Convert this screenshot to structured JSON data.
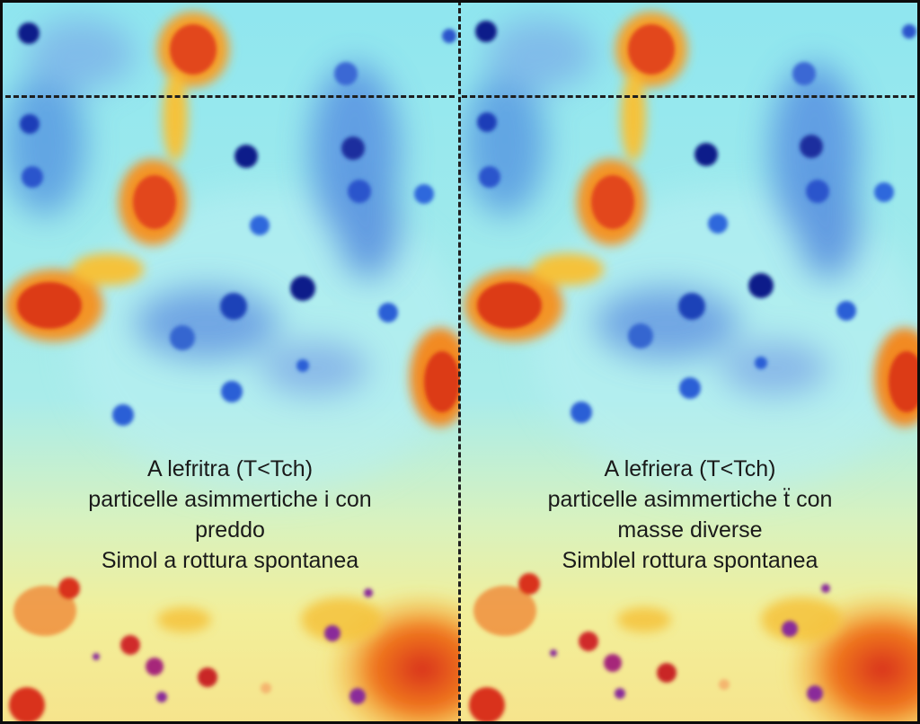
{
  "panels": [
    {
      "lines": [
        "A lefritra (T<Tch)",
        "particelle asimmertiche i con",
        "preddo",
        "Simol a rottura spontanea"
      ]
    },
    {
      "lines": [
        "A lefriera (T<Tch)",
        "particelle asimmertiche ẗ con",
        "masse diverse",
        "Simblel rottura spontanea"
      ]
    }
  ],
  "colors": {
    "background_cyan": "#8fe6ef",
    "background_yellow": "#f2ef9a",
    "cluster_orange": "#f28a24",
    "cluster_red": "#d9321a",
    "particle_blue": "#2a5fd6",
    "particle_navy": "#0d1c8a",
    "particle_purple": "#8a2a9a"
  }
}
